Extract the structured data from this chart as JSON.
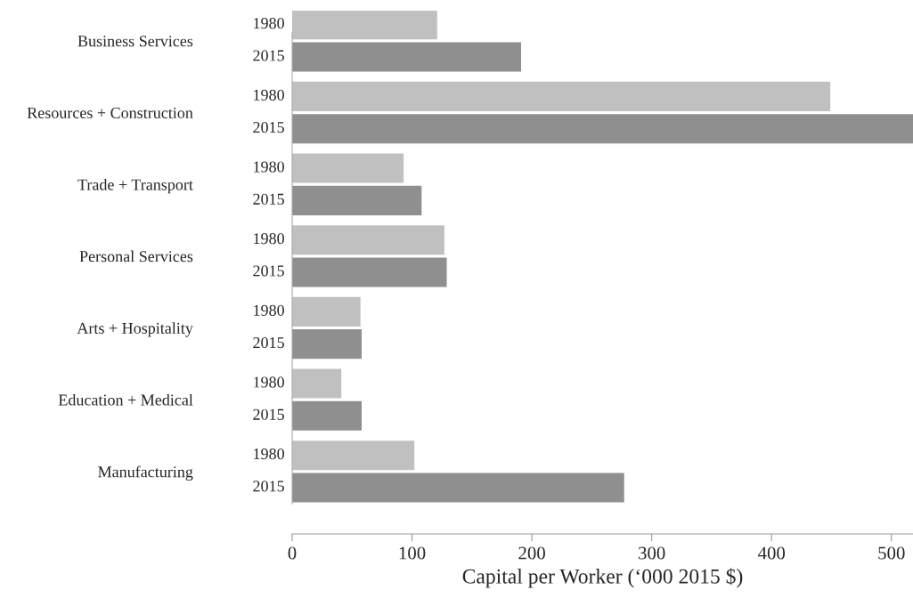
{
  "chart_data": {
    "type": "bar",
    "orientation": "horizontal",
    "xlabel": "Capital per Worker (‘000 2015 $)",
    "categories": [
      "Business Services",
      "Resources + Construction",
      "Trade + Transport",
      "Personal Services",
      "Arts + Hospitality",
      "Education + Medical",
      "Manufacturing"
    ],
    "series": [
      {
        "name": "1980",
        "color": "#c0c0c0",
        "values": [
          121,
          449,
          93,
          127,
          57,
          41,
          102
        ]
      },
      {
        "name": "2015",
        "color": "#8f8f8f",
        "values": [
          191,
          518,
          108,
          129,
          58,
          58,
          277
        ]
      }
    ],
    "xlim": [
      0,
      518
    ],
    "xticks": [
      0,
      100,
      200,
      300,
      400,
      500
    ],
    "grid": false,
    "legend": false
  }
}
